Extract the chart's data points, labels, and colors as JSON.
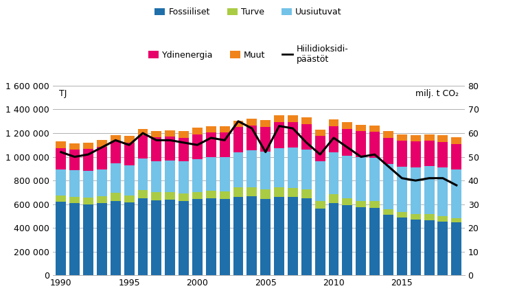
{
  "years": [
    1990,
    1991,
    1992,
    1993,
    1994,
    1995,
    1996,
    1997,
    1998,
    1999,
    2000,
    2001,
    2002,
    2003,
    2004,
    2005,
    2006,
    2007,
    2008,
    2009,
    2010,
    2011,
    2012,
    2013,
    2014,
    2015,
    2016,
    2017,
    2018,
    2019
  ],
  "fossiiliset": [
    620000,
    610000,
    600000,
    610000,
    630000,
    615000,
    650000,
    635000,
    640000,
    630000,
    645000,
    650000,
    645000,
    660000,
    670000,
    645000,
    660000,
    660000,
    650000,
    565000,
    610000,
    590000,
    575000,
    570000,
    510000,
    490000,
    470000,
    465000,
    455000,
    445000
  ],
  "turve": [
    55000,
    50000,
    55000,
    55000,
    65000,
    60000,
    70000,
    65000,
    60000,
    60000,
    60000,
    65000,
    65000,
    85000,
    75000,
    80000,
    85000,
    80000,
    75000,
    65000,
    75000,
    60000,
    55000,
    55000,
    50000,
    45000,
    45000,
    50000,
    45000,
    40000
  ],
  "uusiutuvat": [
    220000,
    225000,
    225000,
    230000,
    250000,
    255000,
    265000,
    265000,
    270000,
    270000,
    275000,
    285000,
    285000,
    295000,
    310000,
    320000,
    330000,
    340000,
    335000,
    330000,
    355000,
    360000,
    370000,
    365000,
    380000,
    380000,
    395000,
    405000,
    410000,
    410000
  ],
  "ydinenergia": [
    180000,
    175000,
    185000,
    190000,
    185000,
    190000,
    195000,
    200000,
    200000,
    200000,
    210000,
    205000,
    210000,
    210000,
    210000,
    210000,
    215000,
    215000,
    215000,
    215000,
    220000,
    225000,
    215000,
    220000,
    220000,
    220000,
    220000,
    215000,
    215000,
    215000
  ],
  "muut": [
    55000,
    55000,
    55000,
    55000,
    55000,
    55000,
    55000,
    55000,
    55000,
    55000,
    55000,
    55000,
    55000,
    55000,
    58000,
    55000,
    58000,
    58000,
    58000,
    55000,
    55000,
    55000,
    55000,
    55000,
    55000,
    55000,
    55000,
    55000,
    55000,
    55000
  ],
  "co2": [
    52,
    50,
    51,
    54,
    57,
    55,
    60,
    57,
    57,
    56,
    55,
    58,
    57,
    65,
    62,
    52,
    63,
    62,
    56,
    51,
    58,
    54,
    50,
    51,
    46,
    41,
    40,
    41,
    41,
    38
  ],
  "colors": {
    "fossiiliset": "#1F6FAA",
    "turve": "#AACC44",
    "uusiutuvat": "#73C2E8",
    "ydinenergia": "#E8006A",
    "muut": "#F0841A",
    "co2_line": "#000000"
  },
  "ylim_left": [
    0,
    1600000
  ],
  "ylim_right": [
    0,
    80
  ],
  "yticks_left": [
    0,
    200000,
    400000,
    600000,
    800000,
    1000000,
    1200000,
    1400000,
    1600000
  ],
  "yticks_right": [
    0,
    10,
    20,
    30,
    40,
    50,
    60,
    70,
    80
  ],
  "ylabel_left": "TJ",
  "ylabel_right": "milj. t CO₂",
  "legend_row1": [
    "Fossiiliset",
    "Turve",
    "Uusiutuvat"
  ],
  "legend_row2": [
    "Ydinenergia",
    "Muut",
    "Hiilidioksidi-\npäästöt"
  ],
  "bg_color": "#ffffff",
  "grid_color": "#b0b0b0"
}
